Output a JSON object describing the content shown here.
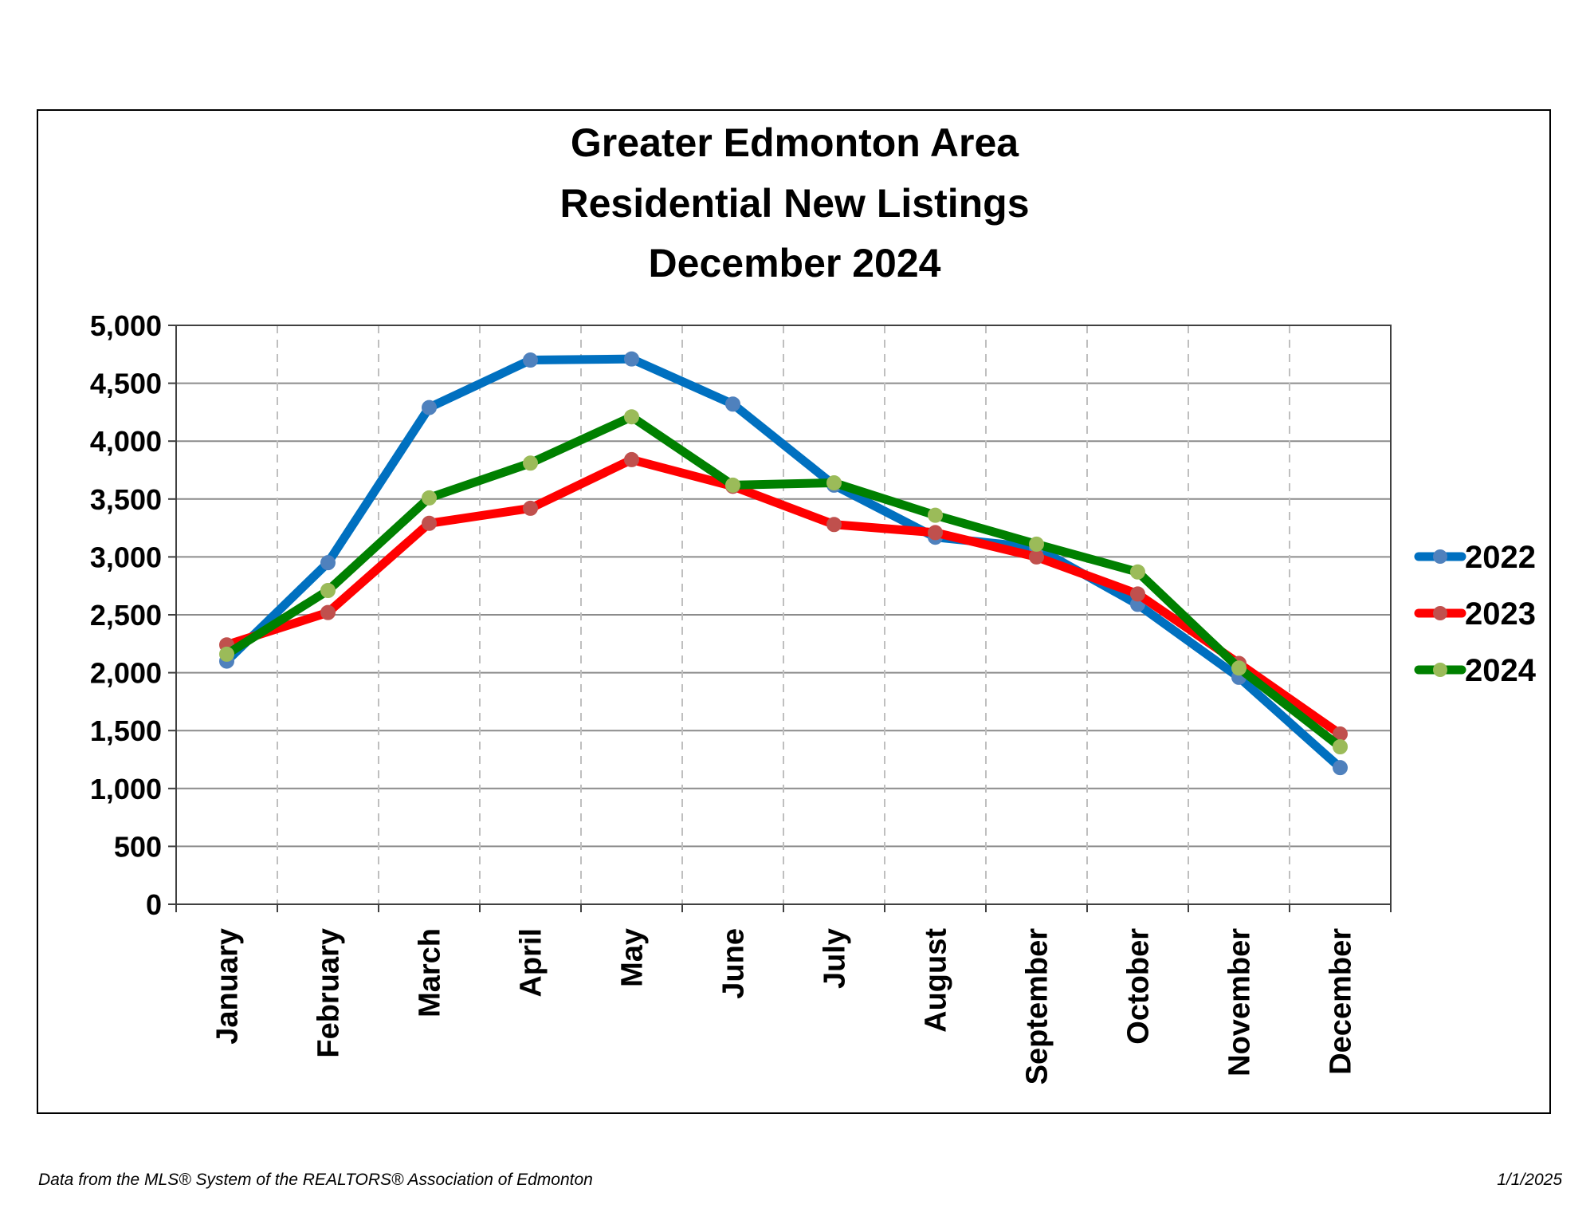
{
  "chart_data": {
    "type": "line",
    "title": [
      "Greater Edmonton Area",
      "Residential New Listings",
      "December 2024"
    ],
    "categories": [
      "January",
      "February",
      "March",
      "April",
      "May",
      "June",
      "July",
      "August",
      "September",
      "October",
      "November",
      "December"
    ],
    "ylim": [
      0,
      5000
    ],
    "yticks": [
      0,
      500,
      1000,
      1500,
      2000,
      2500,
      3000,
      3500,
      4000,
      4500,
      5000
    ],
    "ytick_labels": [
      "0",
      "500",
      "1,000",
      "1,500",
      "2,000",
      "2,500",
      "3,000",
      "3,500",
      "4,000",
      "4,500",
      "5,000"
    ],
    "grid": true,
    "legend_position": "right",
    "series": [
      {
        "name": "2022",
        "color": "#0070C0",
        "marker_color": "#4F81BD",
        "values": [
          2100,
          2950,
          4290,
          4700,
          4710,
          4320,
          3620,
          3170,
          3080,
          2590,
          1960,
          1180
        ]
      },
      {
        "name": "2023",
        "color": "#FF0000",
        "marker_color": "#C0504D",
        "values": [
          2240,
          2520,
          3290,
          3420,
          3840,
          3610,
          3280,
          3210,
          3000,
          2680,
          2080,
          1470
        ]
      },
      {
        "name": "2024",
        "color": "#008000",
        "marker_color": "#9BBB59",
        "values": [
          2160,
          2710,
          3510,
          3810,
          4210,
          3620,
          3640,
          3360,
          3110,
          2870,
          2040,
          1360
        ]
      }
    ]
  },
  "footer": {
    "source": "Data from the MLS® System of the REALTORS® Association of Edmonton",
    "date": "1/1/2025"
  }
}
